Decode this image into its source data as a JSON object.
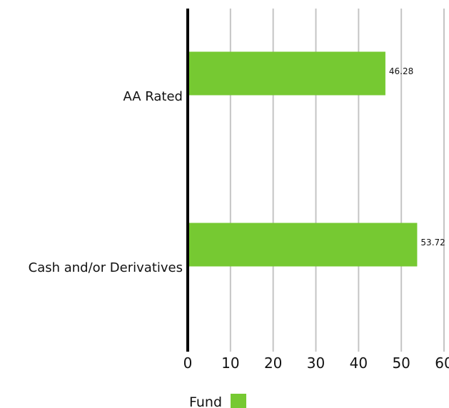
{
  "chart_data": {
    "type": "bar",
    "orientation": "horizontal",
    "categories": [
      "AA Rated",
      "Cash and/or Derivatives"
    ],
    "series": [
      {
        "name": "Fund",
        "values": [
          46.28,
          53.72
        ],
        "color": "#76C932"
      }
    ],
    "data_labels": [
      "46.28",
      "53.72"
    ],
    "xlim": [
      0,
      60
    ],
    "xticks": [
      "0",
      "10",
      "20",
      "30",
      "40",
      "50",
      "60"
    ],
    "grid": true,
    "legend": {
      "placement": "bottom",
      "label": "Fund"
    }
  }
}
